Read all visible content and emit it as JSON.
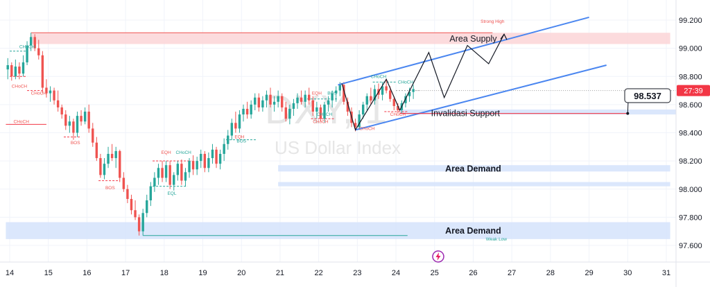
{
  "chart_data": {
    "type": "candlestick",
    "watermark": {
      "symbol": "DXY, 1",
      "name": "US Dollar Index"
    },
    "y_axis": {
      "ylim": [
        97.5,
        99.3
      ],
      "ticks": [
        99.2,
        99.0,
        98.8,
        98.6,
        98.4,
        98.2,
        98.0,
        97.8,
        97.6
      ],
      "tick_labels": [
        "99.200",
        "99.000",
        "98.800",
        "98.600",
        "98.400",
        "98.200",
        "98.000",
        "97.800",
        "97.600"
      ]
    },
    "x_axis": {
      "ticks": [
        14,
        15,
        16,
        17,
        18,
        19,
        20,
        21,
        22,
        23,
        24,
        25,
        26,
        27,
        28,
        29,
        30,
        31
      ],
      "tick_labels": [
        "14",
        "15",
        "16",
        "17",
        "18",
        "19",
        "20",
        "21",
        "22",
        "23",
        "24",
        "25",
        "26",
        "27",
        "28",
        "29",
        "30",
        "31"
      ],
      "xlim": [
        13.9,
        31.1
      ]
    },
    "colors": {
      "up": "#26a69a",
      "down": "#ef5350",
      "trend": "#4a86f0",
      "supply": "#fcd5d7",
      "demand": "#d5e3fb",
      "price": "#f23645",
      "invalid": "#f23645"
    },
    "price_tag": {
      "label": "27:39",
      "value": 98.7
    },
    "current_price_marker": {
      "label": "98.537",
      "x": 30.0,
      "y": 98.537
    },
    "zones": [
      {
        "label": "Area Supply",
        "kind": "supply",
        "x0": 14.55,
        "x1": 31.1,
        "y0": 99.03,
        "y1": 99.11,
        "label_x": 26.0
      },
      {
        "label": "Area Demand",
        "kind": "demand",
        "x0": 20.95,
        "x1": 31.1,
        "y0": 98.125,
        "y1": 98.17,
        "label_x": 26.0
      },
      {
        "label": "",
        "kind": "demand",
        "x0": 20.95,
        "x1": 31.1,
        "y0": 98.02,
        "y1": 98.05,
        "label_x": null
      },
      {
        "label": "Area Demand",
        "kind": "demand",
        "x0": 13.9,
        "x1": 31.1,
        "y0": 97.645,
        "y1": 97.765,
        "label_x": 26.0
      }
    ],
    "invalidation": {
      "label": "Invalidasi Support",
      "x0": 24.1,
      "x1": 30.0,
      "y": 98.537
    },
    "invalidation_band": {
      "x0": 24.1,
      "x1": 31.1,
      "y0": 98.53,
      "y1": 98.565
    },
    "channel": [
      {
        "x0": 22.5,
        "y0": 98.74,
        "x1": 29.0,
        "y1": 99.22
      },
      {
        "x0": 22.95,
        "y0": 98.42,
        "x1": 29.45,
        "y1": 98.88
      }
    ],
    "projection": {
      "x": [
        22.6,
        22.95,
        23.75,
        24.1,
        24.85,
        25.25,
        25.85,
        26.4,
        26.8
      ],
      "y": [
        98.75,
        98.42,
        98.78,
        98.56,
        98.97,
        98.65,
        99.02,
        98.89,
        99.1
      ]
    },
    "annotations": [
      {
        "text": "CHoCH",
        "x": 14.45,
        "y": 99.0,
        "color": "up"
      },
      {
        "text": "CHoCH",
        "x": 14.25,
        "y": 98.72,
        "color": "down"
      },
      {
        "text": "CHoCH",
        "x": 14.75,
        "y": 98.67,
        "color": "down"
      },
      {
        "text": "CHoCH",
        "x": 14.3,
        "y": 98.47,
        "color": "down"
      },
      {
        "text": "BOS",
        "x": 15.7,
        "y": 98.32,
        "color": "down"
      },
      {
        "text": "BOS",
        "x": 16.6,
        "y": 98.0,
        "color": "down"
      },
      {
        "text": "EQH",
        "x": 18.05,
        "y": 98.25,
        "color": "down"
      },
      {
        "text": "CHoCH",
        "x": 18.5,
        "y": 98.25,
        "color": "up"
      },
      {
        "text": "EQL",
        "x": 18.2,
        "y": 97.96,
        "color": "up"
      },
      {
        "text": "EQH",
        "x": 19.95,
        "y": 98.36,
        "color": "down"
      },
      {
        "text": "BOS",
        "x": 20.0,
        "y": 98.33,
        "color": "up"
      },
      {
        "text": "EQH",
        "x": 21.95,
        "y": 98.67,
        "color": "down"
      },
      {
        "text": "BOS",
        "x": 22.35,
        "y": 98.67,
        "color": "up"
      },
      {
        "text": "CHoCH",
        "x": 22.15,
        "y": 98.52,
        "color": "up"
      },
      {
        "text": "CHoCH",
        "x": 22.05,
        "y": 98.47,
        "color": "down"
      },
      {
        "text": "CHoCH",
        "x": 23.25,
        "y": 98.42,
        "color": "down"
      },
      {
        "text": "CHoCH",
        "x": 23.55,
        "y": 98.79,
        "color": "up"
      },
      {
        "text": "CHoCH",
        "x": 24.25,
        "y": 98.75,
        "color": "up"
      },
      {
        "text": "CHoCH",
        "x": 24.05,
        "y": 98.52,
        "color": "down"
      },
      {
        "text": "Strong High",
        "x": 26.5,
        "y": 99.18,
        "color": "down"
      },
      {
        "text": "Weak Low",
        "x": 26.6,
        "y": 97.635,
        "color": "up"
      }
    ],
    "candles": [
      {
        "x": 13.95,
        "o": 98.85,
        "h": 98.93,
        "l": 98.78,
        "c": 98.88
      },
      {
        "x": 14.05,
        "o": 98.88,
        "h": 98.9,
        "l": 98.77,
        "c": 98.8
      },
      {
        "x": 14.15,
        "o": 98.8,
        "h": 98.92,
        "l": 98.78,
        "c": 98.87
      },
      {
        "x": 14.25,
        "o": 98.87,
        "h": 98.9,
        "l": 98.78,
        "c": 98.82
      },
      {
        "x": 14.35,
        "o": 98.82,
        "h": 98.95,
        "l": 98.8,
        "c": 98.9
      },
      {
        "x": 14.45,
        "o": 98.9,
        "h": 99.05,
        "l": 98.88,
        "c": 99.02
      },
      {
        "x": 14.55,
        "o": 99.02,
        "h": 99.11,
        "l": 98.98,
        "c": 99.08
      },
      {
        "x": 14.65,
        "o": 99.08,
        "h": 99.1,
        "l": 98.98,
        "c": 99.0
      },
      {
        "x": 14.75,
        "o": 99.0,
        "h": 99.06,
        "l": 98.92,
        "c": 98.95
      },
      {
        "x": 14.85,
        "o": 98.95,
        "h": 98.98,
        "l": 98.68,
        "c": 98.72
      },
      {
        "x": 14.95,
        "o": 98.72,
        "h": 98.78,
        "l": 98.65,
        "c": 98.68
      },
      {
        "x": 15.05,
        "o": 98.68,
        "h": 98.73,
        "l": 98.62,
        "c": 98.7
      },
      {
        "x": 15.15,
        "o": 98.7,
        "h": 98.72,
        "l": 98.6,
        "c": 98.63
      },
      {
        "x": 15.25,
        "o": 98.63,
        "h": 98.7,
        "l": 98.55,
        "c": 98.58
      },
      {
        "x": 15.35,
        "o": 98.58,
        "h": 98.6,
        "l": 98.5,
        "c": 98.53
      },
      {
        "x": 15.45,
        "o": 98.53,
        "h": 98.56,
        "l": 98.42,
        "c": 98.45
      },
      {
        "x": 15.55,
        "o": 98.45,
        "h": 98.52,
        "l": 98.4,
        "c": 98.48
      },
      {
        "x": 15.65,
        "o": 98.48,
        "h": 98.5,
        "l": 98.35,
        "c": 98.4
      },
      {
        "x": 15.75,
        "o": 98.4,
        "h": 98.55,
        "l": 98.37,
        "c": 98.52
      },
      {
        "x": 15.85,
        "o": 98.52,
        "h": 98.56,
        "l": 98.45,
        "c": 98.48
      },
      {
        "x": 15.95,
        "o": 98.48,
        "h": 98.58,
        "l": 98.46,
        "c": 98.55
      },
      {
        "x": 16.05,
        "o": 98.55,
        "h": 98.6,
        "l": 98.4,
        "c": 98.43
      },
      {
        "x": 16.15,
        "o": 98.43,
        "h": 98.47,
        "l": 98.3,
        "c": 98.33
      },
      {
        "x": 16.25,
        "o": 98.33,
        "h": 98.37,
        "l": 98.2,
        "c": 98.22
      },
      {
        "x": 16.35,
        "o": 98.22,
        "h": 98.25,
        "l": 98.08,
        "c": 98.1
      },
      {
        "x": 16.45,
        "o": 98.1,
        "h": 98.22,
        "l": 98.07,
        "c": 98.18
      },
      {
        "x": 16.55,
        "o": 98.18,
        "h": 98.3,
        "l": 98.15,
        "c": 98.25
      },
      {
        "x": 16.65,
        "o": 98.25,
        "h": 98.32,
        "l": 98.2,
        "c": 98.22
      },
      {
        "x": 16.75,
        "o": 98.22,
        "h": 98.3,
        "l": 98.15,
        "c": 98.27
      },
      {
        "x": 16.85,
        "o": 98.27,
        "h": 98.28,
        "l": 98.05,
        "c": 98.08
      },
      {
        "x": 16.95,
        "o": 98.08,
        "h": 98.12,
        "l": 97.98,
        "c": 98.0
      },
      {
        "x": 17.05,
        "o": 98.0,
        "h": 98.03,
        "l": 97.9,
        "c": 97.93
      },
      {
        "x": 17.15,
        "o": 97.93,
        "h": 97.96,
        "l": 97.82,
        "c": 97.85
      },
      {
        "x": 17.25,
        "o": 97.85,
        "h": 97.92,
        "l": 97.78,
        "c": 97.8
      },
      {
        "x": 17.35,
        "o": 97.8,
        "h": 97.82,
        "l": 97.67,
        "c": 97.7
      },
      {
        "x": 17.45,
        "o": 97.7,
        "h": 97.86,
        "l": 97.67,
        "c": 97.83
      },
      {
        "x": 17.55,
        "o": 97.83,
        "h": 97.96,
        "l": 97.8,
        "c": 97.92
      },
      {
        "x": 17.65,
        "o": 97.92,
        "h": 98.05,
        "l": 97.88,
        "c": 98.02
      },
      {
        "x": 17.75,
        "o": 98.02,
        "h": 98.12,
        "l": 97.98,
        "c": 98.08
      },
      {
        "x": 17.85,
        "o": 98.08,
        "h": 98.18,
        "l": 98.03,
        "c": 98.15
      },
      {
        "x": 17.95,
        "o": 98.15,
        "h": 98.2,
        "l": 98.05,
        "c": 98.08
      },
      {
        "x": 18.05,
        "o": 98.08,
        "h": 98.2,
        "l": 98.05,
        "c": 98.17
      },
      {
        "x": 18.15,
        "o": 98.17,
        "h": 98.2,
        "l": 98.0,
        "c": 98.03
      },
      {
        "x": 18.25,
        "o": 98.03,
        "h": 98.12,
        "l": 97.99,
        "c": 98.1
      },
      {
        "x": 18.35,
        "o": 98.1,
        "h": 98.2,
        "l": 98.06,
        "c": 98.18
      },
      {
        "x": 18.45,
        "o": 98.18,
        "h": 98.21,
        "l": 98.03,
        "c": 98.06
      },
      {
        "x": 18.55,
        "o": 98.06,
        "h": 98.15,
        "l": 98.02,
        "c": 98.12
      },
      {
        "x": 18.65,
        "o": 98.12,
        "h": 98.22,
        "l": 98.08,
        "c": 98.2
      },
      {
        "x": 18.75,
        "o": 98.2,
        "h": 98.24,
        "l": 98.1,
        "c": 98.14
      },
      {
        "x": 18.85,
        "o": 98.14,
        "h": 98.23,
        "l": 98.1,
        "c": 98.2
      },
      {
        "x": 18.95,
        "o": 98.2,
        "h": 98.28,
        "l": 98.15,
        "c": 98.25
      },
      {
        "x": 19.05,
        "o": 98.25,
        "h": 98.27,
        "l": 98.12,
        "c": 98.15
      },
      {
        "x": 19.15,
        "o": 98.15,
        "h": 98.26,
        "l": 98.12,
        "c": 98.22
      },
      {
        "x": 19.25,
        "o": 98.22,
        "h": 98.32,
        "l": 98.18,
        "c": 98.28
      },
      {
        "x": 19.35,
        "o": 98.28,
        "h": 98.3,
        "l": 98.15,
        "c": 98.18
      },
      {
        "x": 19.45,
        "o": 98.18,
        "h": 98.28,
        "l": 98.14,
        "c": 98.25
      },
      {
        "x": 19.55,
        "o": 98.25,
        "h": 98.36,
        "l": 98.2,
        "c": 98.32
      },
      {
        "x": 19.65,
        "o": 98.32,
        "h": 98.42,
        "l": 98.28,
        "c": 98.38
      },
      {
        "x": 19.75,
        "o": 98.38,
        "h": 98.5,
        "l": 98.35,
        "c": 98.47
      },
      {
        "x": 19.85,
        "o": 98.47,
        "h": 98.55,
        "l": 98.4,
        "c": 98.43
      },
      {
        "x": 19.95,
        "o": 98.43,
        "h": 98.56,
        "l": 98.4,
        "c": 98.53
      },
      {
        "x": 20.05,
        "o": 98.53,
        "h": 98.6,
        "l": 98.48,
        "c": 98.57
      },
      {
        "x": 20.15,
        "o": 98.57,
        "h": 98.62,
        "l": 98.5,
        "c": 98.53
      },
      {
        "x": 20.25,
        "o": 98.53,
        "h": 98.63,
        "l": 98.5,
        "c": 98.6
      },
      {
        "x": 20.35,
        "o": 98.6,
        "h": 98.68,
        "l": 98.56,
        "c": 98.65
      },
      {
        "x": 20.45,
        "o": 98.65,
        "h": 98.68,
        "l": 98.55,
        "c": 98.58
      },
      {
        "x": 20.55,
        "o": 98.58,
        "h": 98.66,
        "l": 98.55,
        "c": 98.63
      },
      {
        "x": 20.65,
        "o": 98.63,
        "h": 98.7,
        "l": 98.58,
        "c": 98.67
      },
      {
        "x": 20.75,
        "o": 98.67,
        "h": 98.72,
        "l": 98.58,
        "c": 98.6
      },
      {
        "x": 20.85,
        "o": 98.6,
        "h": 98.66,
        "l": 98.55,
        "c": 98.62
      },
      {
        "x": 20.95,
        "o": 98.62,
        "h": 98.7,
        "l": 98.58,
        "c": 98.66
      },
      {
        "x": 21.05,
        "o": 98.66,
        "h": 98.68,
        "l": 98.55,
        "c": 98.58
      },
      {
        "x": 21.15,
        "o": 98.58,
        "h": 98.62,
        "l": 98.48,
        "c": 98.5
      },
      {
        "x": 21.25,
        "o": 98.5,
        "h": 98.6,
        "l": 98.46,
        "c": 98.57
      },
      {
        "x": 21.35,
        "o": 98.57,
        "h": 98.64,
        "l": 98.52,
        "c": 98.61
      },
      {
        "x": 21.45,
        "o": 98.61,
        "h": 98.68,
        "l": 98.57,
        "c": 98.65
      },
      {
        "x": 21.55,
        "o": 98.65,
        "h": 98.7,
        "l": 98.6,
        "c": 98.62
      },
      {
        "x": 21.65,
        "o": 98.62,
        "h": 98.7,
        "l": 98.58,
        "c": 98.67
      },
      {
        "x": 21.75,
        "o": 98.67,
        "h": 98.72,
        "l": 98.6,
        "c": 98.63
      },
      {
        "x": 21.85,
        "o": 98.63,
        "h": 98.66,
        "l": 98.52,
        "c": 98.55
      },
      {
        "x": 21.95,
        "o": 98.55,
        "h": 98.62,
        "l": 98.5,
        "c": 98.58
      },
      {
        "x": 22.05,
        "o": 98.58,
        "h": 98.6,
        "l": 98.48,
        "c": 98.5
      },
      {
        "x": 22.15,
        "o": 98.5,
        "h": 98.62,
        "l": 98.47,
        "c": 98.6
      },
      {
        "x": 22.25,
        "o": 98.6,
        "h": 98.66,
        "l": 98.55,
        "c": 98.63
      },
      {
        "x": 22.35,
        "o": 98.63,
        "h": 98.7,
        "l": 98.58,
        "c": 98.68
      },
      {
        "x": 22.45,
        "o": 98.68,
        "h": 98.73,
        "l": 98.62,
        "c": 98.7
      },
      {
        "x": 22.55,
        "o": 98.7,
        "h": 98.76,
        "l": 98.66,
        "c": 98.74
      },
      {
        "x": 22.65,
        "o": 98.74,
        "h": 98.76,
        "l": 98.6,
        "c": 98.62
      },
      {
        "x": 22.75,
        "o": 98.62,
        "h": 98.65,
        "l": 98.52,
        "c": 98.55
      },
      {
        "x": 22.85,
        "o": 98.55,
        "h": 98.58,
        "l": 98.44,
        "c": 98.47
      },
      {
        "x": 22.95,
        "o": 98.47,
        "h": 98.5,
        "l": 98.41,
        "c": 98.44
      },
      {
        "x": 23.05,
        "o": 98.44,
        "h": 98.56,
        "l": 98.42,
        "c": 98.53
      },
      {
        "x": 23.15,
        "o": 98.53,
        "h": 98.62,
        "l": 98.5,
        "c": 98.6
      },
      {
        "x": 23.25,
        "o": 98.6,
        "h": 98.68,
        "l": 98.56,
        "c": 98.66
      },
      {
        "x": 23.35,
        "o": 98.66,
        "h": 98.72,
        "l": 98.6,
        "c": 98.63
      },
      {
        "x": 23.45,
        "o": 98.63,
        "h": 98.74,
        "l": 98.6,
        "c": 98.71
      },
      {
        "x": 23.55,
        "o": 98.71,
        "h": 98.75,
        "l": 98.64,
        "c": 98.67
      },
      {
        "x": 23.65,
        "o": 98.67,
        "h": 98.76,
        "l": 98.63,
        "c": 98.73
      },
      {
        "x": 23.75,
        "o": 98.73,
        "h": 98.78,
        "l": 98.68,
        "c": 98.7
      },
      {
        "x": 23.85,
        "o": 98.7,
        "h": 98.73,
        "l": 98.62,
        "c": 98.64
      },
      {
        "x": 23.95,
        "o": 98.64,
        "h": 98.66,
        "l": 98.56,
        "c": 98.59
      },
      {
        "x": 24.05,
        "o": 98.59,
        "h": 98.61,
        "l": 98.54,
        "c": 98.56
      },
      {
        "x": 24.15,
        "o": 98.56,
        "h": 98.63,
        "l": 98.54,
        "c": 98.61
      },
      {
        "x": 24.25,
        "o": 98.61,
        "h": 98.68,
        "l": 98.58,
        "c": 98.66
      },
      {
        "x": 24.35,
        "o": 98.66,
        "h": 98.72,
        "l": 98.62,
        "c": 98.69
      },
      {
        "x": 24.45,
        "o": 98.69,
        "h": 98.74,
        "l": 98.64,
        "c": 98.71
      }
    ]
  }
}
